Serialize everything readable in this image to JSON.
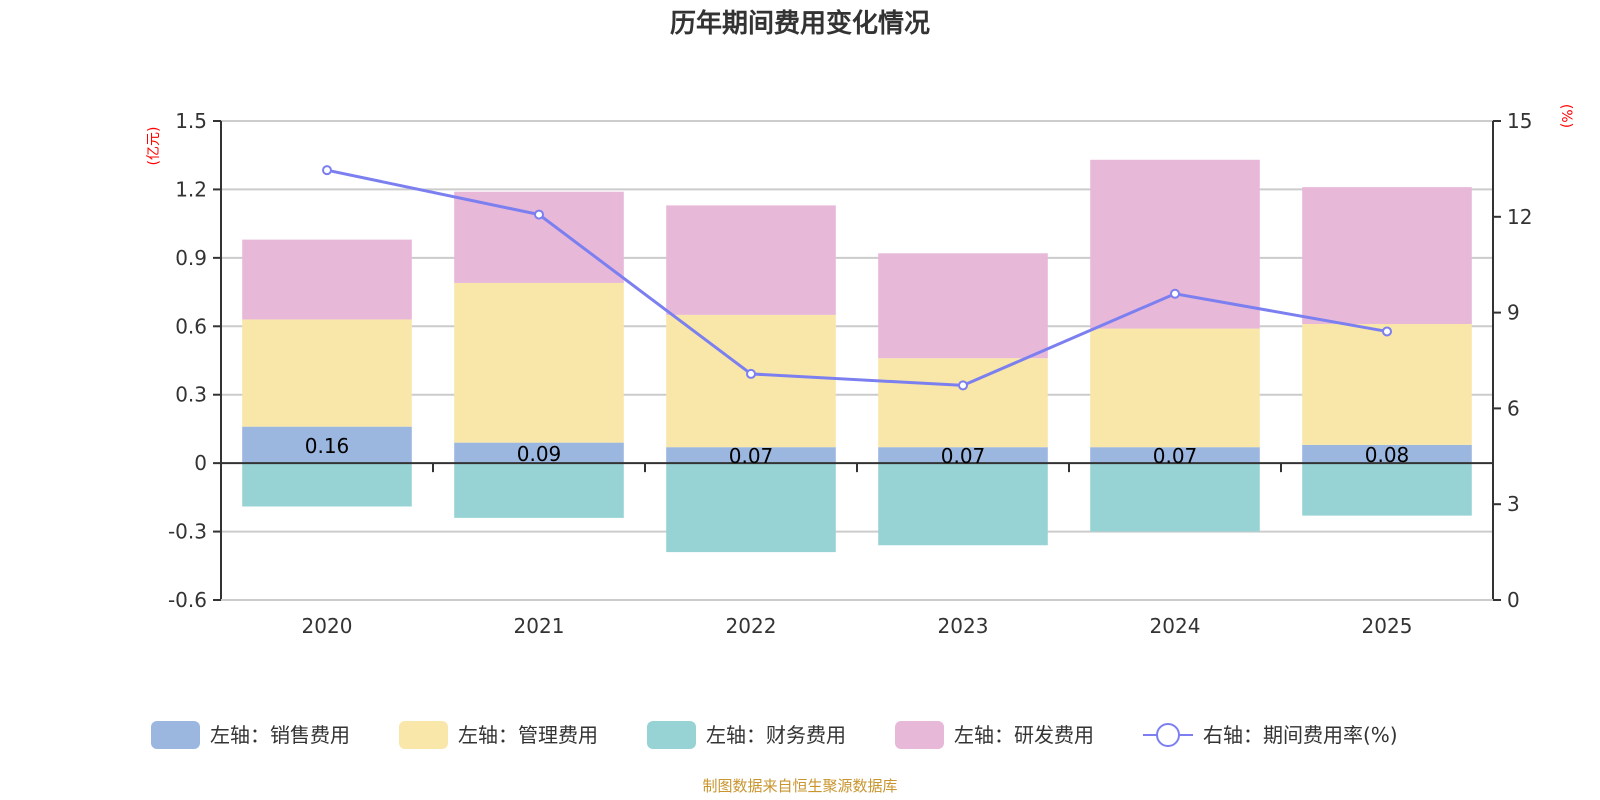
{
  "chart_data": {
    "type": "bar",
    "stacked": true,
    "title": "历年期间费用变化情况",
    "categories": [
      "2020",
      "2021",
      "2022",
      "2023",
      "2024",
      "2025"
    ],
    "left_axis": {
      "unit": "(亿元)",
      "range": [
        -0.6,
        1.5
      ],
      "ticks": [
        -0.6,
        -0.3,
        0,
        0.3,
        0.6,
        0.9,
        1.2,
        1.5
      ],
      "tick_labels": [
        "-0.6",
        "-0.3",
        "0",
        "0.3",
        "0.6",
        "0.9",
        "1.2",
        "1.5"
      ]
    },
    "right_axis": {
      "unit": "(%)",
      "range": [
        0,
        15
      ],
      "ticks": [
        0,
        3,
        6,
        9,
        12,
        15
      ],
      "tick_labels": [
        "0",
        "3",
        "6",
        "9",
        "12",
        "15"
      ]
    },
    "grid": true,
    "legend_position": "bottom",
    "series": [
      {
        "name": "左轴：销售费用",
        "axis": "left",
        "kind": "bar",
        "color": "#9bb7e0",
        "values": [
          0.16,
          0.09,
          0.07,
          0.07,
          0.07,
          0.08
        ],
        "labels": [
          "0.16",
          "0.09",
          "0.07",
          "0.07",
          "0.07",
          "0.08"
        ]
      },
      {
        "name": "左轴：管理费用",
        "axis": "left",
        "kind": "bar",
        "color": "#f8e7a9",
        "values": [
          0.47,
          0.7,
          0.58,
          0.39,
          0.52,
          0.53
        ]
      },
      {
        "name": "左轴：财务费用",
        "axis": "left",
        "kind": "bar",
        "color": "#97d3d4",
        "values": [
          -0.19,
          -0.24,
          -0.39,
          -0.36,
          -0.3,
          -0.23
        ]
      },
      {
        "name": "左轴：研发费用",
        "axis": "left",
        "kind": "bar",
        "color": "#e7b8d8",
        "values": [
          0.35,
          0.4,
          0.48,
          0.46,
          0.74,
          0.6
        ]
      },
      {
        "name": "右轴：期间费用率(%)",
        "axis": "right",
        "kind": "line",
        "color": "#7b7ff0",
        "values": [
          13.46,
          12.07,
          7.08,
          6.72,
          9.59,
          8.41
        ]
      }
    ],
    "source_note": "制图数据来自恒生聚源数据库"
  }
}
